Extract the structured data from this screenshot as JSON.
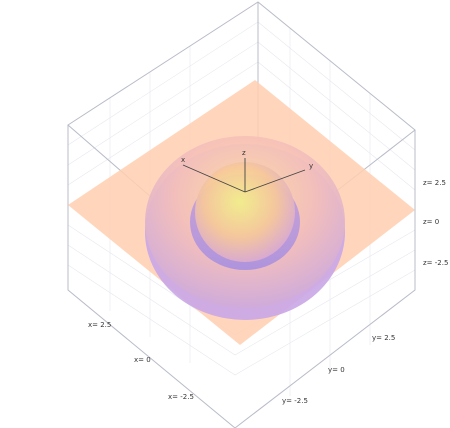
{
  "axes": {
    "x": {
      "label": "x",
      "ticks": [
        "x= 2.5",
        "x= 0",
        "x= -2.5"
      ]
    },
    "y": {
      "label": "y",
      "ticks": [
        "y= 2.5",
        "y= 0",
        "y= -2.5"
      ]
    },
    "z": {
      "label": "z",
      "ticks": [
        "z= 2.5",
        "z= 0",
        "z= -2.5"
      ]
    }
  }
}
